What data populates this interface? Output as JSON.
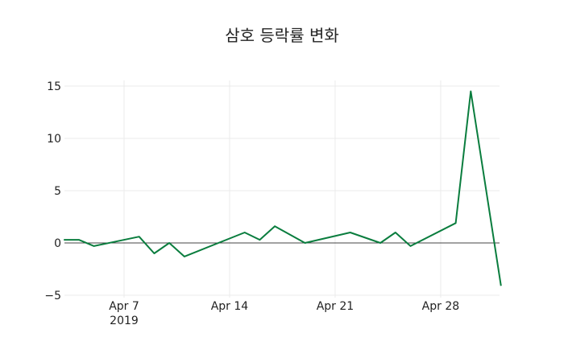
{
  "chart_data": {
    "type": "line",
    "title": "삼호 등락률 변화",
    "xlabel": "",
    "ylabel": "",
    "x": [
      "2019-04-03",
      "2019-04-04",
      "2019-04-05",
      "2019-04-08",
      "2019-04-09",
      "2019-04-10",
      "2019-04-11",
      "2019-04-15",
      "2019-04-16",
      "2019-04-17",
      "2019-04-19",
      "2019-04-22",
      "2019-04-24",
      "2019-04-25",
      "2019-04-26",
      "2019-04-29",
      "2019-04-30",
      "2019-05-02"
    ],
    "series": [
      {
        "name": "등락률",
        "color": "#0a7d3e",
        "values": [
          0.3,
          0.3,
          -0.3,
          0.6,
          -1.0,
          0.0,
          -1.3,
          1.0,
          0.3,
          1.6,
          0.0,
          1.0,
          0.0,
          1.0,
          -0.3,
          1.9,
          14.5,
          -4.1
        ]
      }
    ],
    "ylim": [
      -5,
      15.5
    ],
    "yticks": [
      -5,
      0,
      5,
      10,
      15
    ],
    "ytick_labels": [
      "−5",
      "0",
      "5",
      "10",
      "15"
    ],
    "xticks": [
      "Apr 7\n2019",
      "Apr 14",
      "Apr 21",
      "Apr 28"
    ],
    "grid": true,
    "legend": "none"
  }
}
